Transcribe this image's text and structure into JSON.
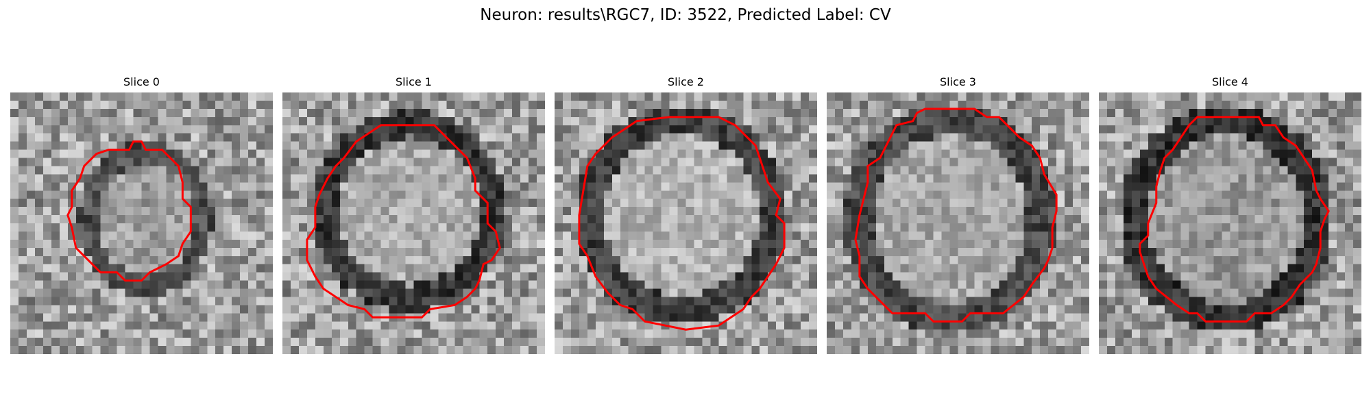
{
  "figure": {
    "title": "Neuron: results\\RGC7, ID: 3522, Predicted Label: CV"
  },
  "colors": {
    "contour": "#ff0000",
    "background": "#ffffff"
  },
  "panels": [
    {
      "title": "Slice 0"
    },
    {
      "title": "Slice 1"
    },
    {
      "title": "Slice 2"
    },
    {
      "title": "Slice 3"
    },
    {
      "title": "Slice 4"
    }
  ]
}
